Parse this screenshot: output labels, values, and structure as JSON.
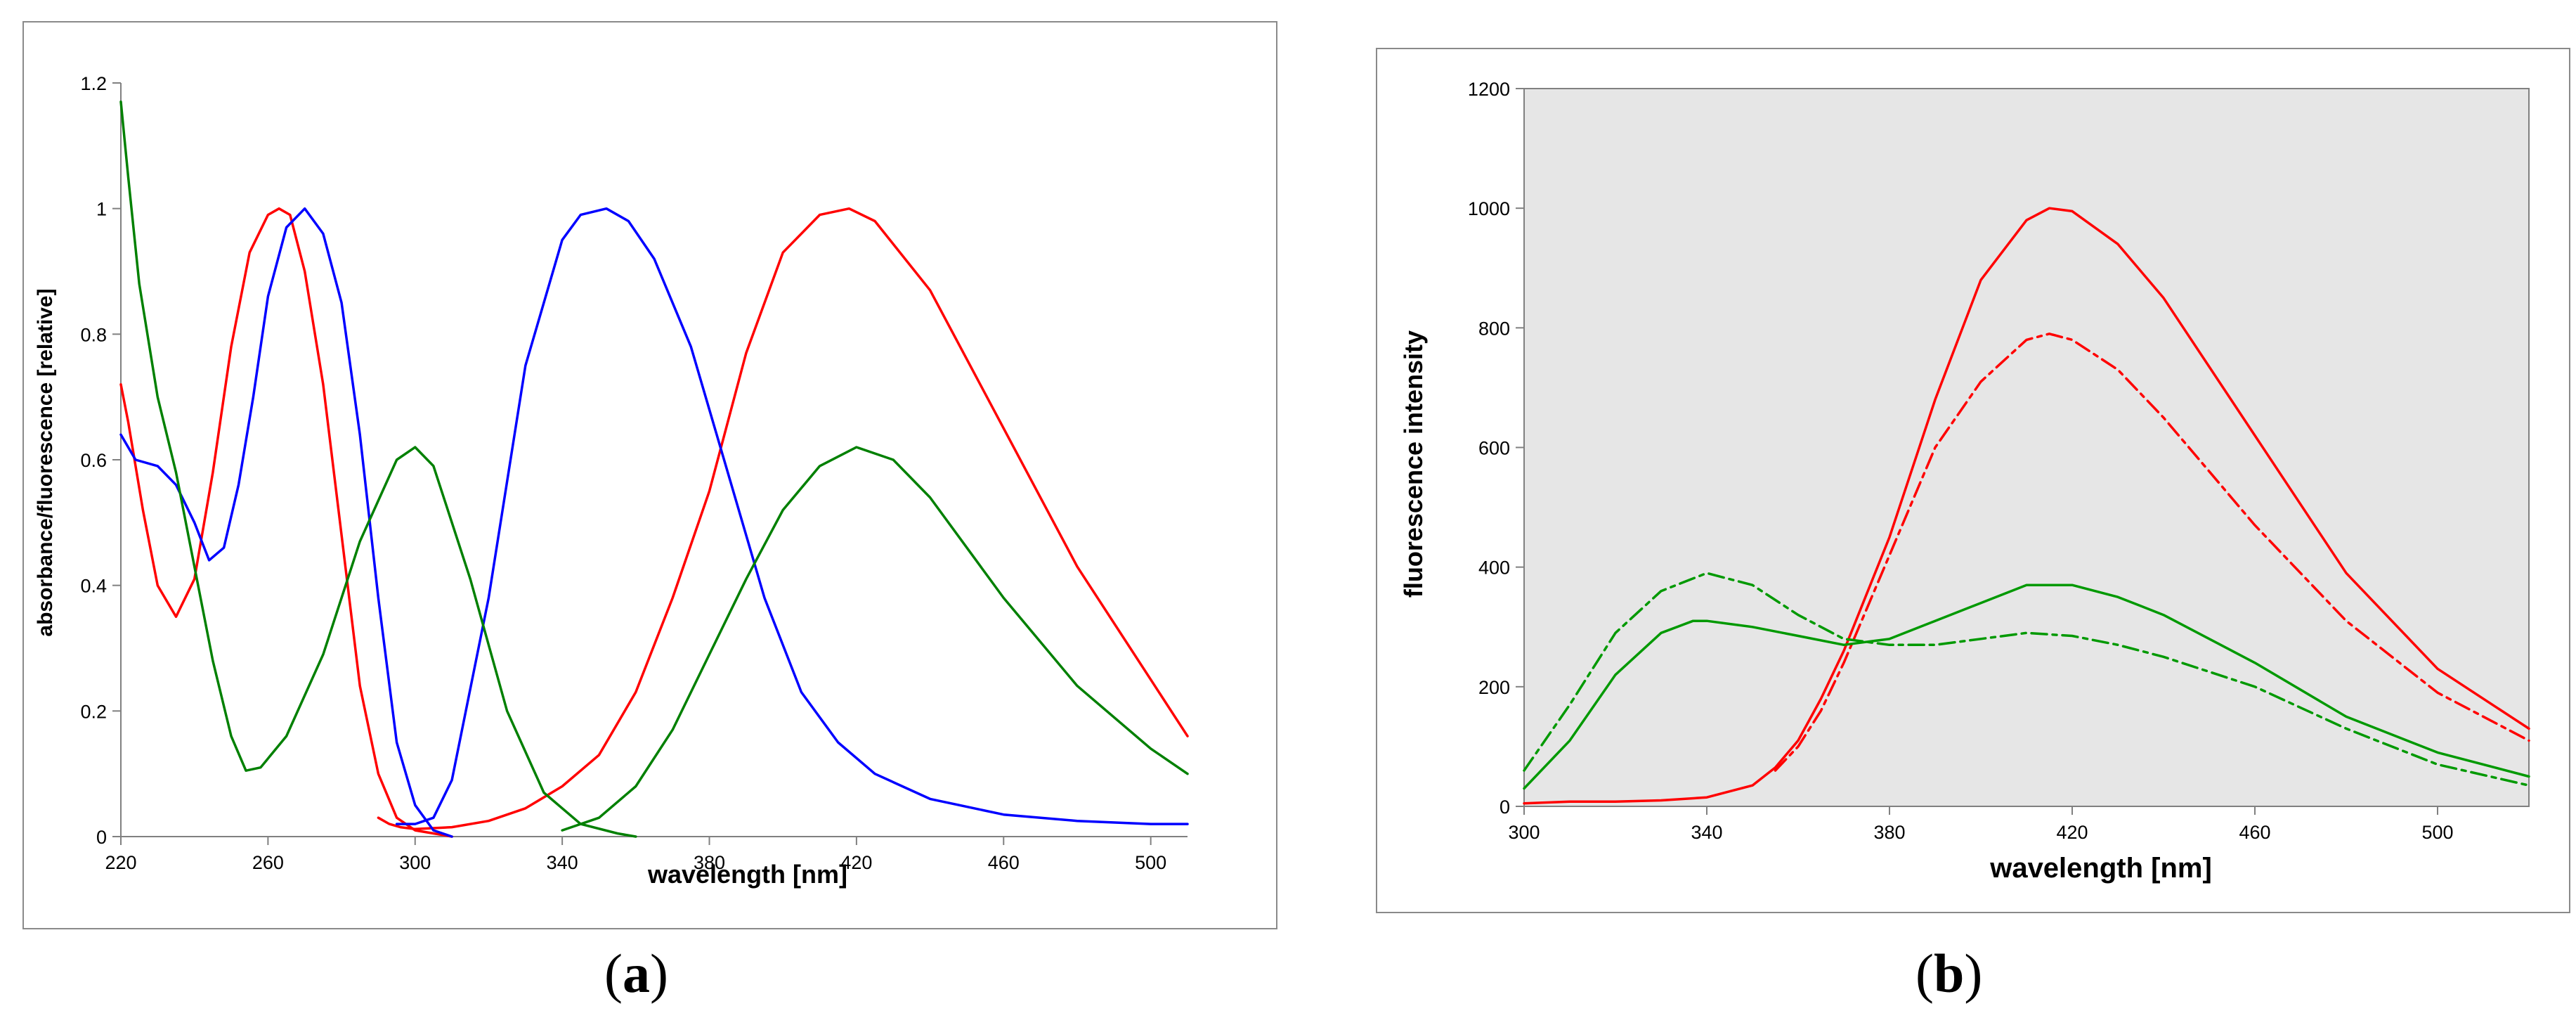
{
  "panel_labels": {
    "a": "a",
    "b": "b"
  },
  "chart_data": [
    {
      "id": "a",
      "type": "line",
      "xlabel": "wavelength [nm]",
      "ylabel": "absorbance/fluorescence [relative]",
      "xlim": [
        220,
        510
      ],
      "ylim": [
        0,
        1.2
      ],
      "xticks": [
        220,
        260,
        300,
        340,
        380,
        420,
        460,
        500
      ],
      "yticks": [
        0,
        0.2,
        0.4,
        0.6,
        0.8,
        1,
        1.2
      ],
      "ytick_labels": [
        "0",
        "0.2",
        "0.4",
        "0.6",
        "0.8",
        "1",
        "1.2"
      ],
      "grid": false,
      "background": "#ffffff",
      "series": [
        {
          "name": "red absorbance",
          "color": "#ff0000",
          "style": "solid",
          "x": [
            220,
            222,
            226,
            230,
            235,
            240,
            245,
            250,
            255,
            260,
            263,
            266,
            270,
            275,
            280,
            285,
            290,
            295,
            300,
            305,
            310
          ],
          "y": [
            0.72,
            0.66,
            0.52,
            0.4,
            0.35,
            0.41,
            0.58,
            0.78,
            0.93,
            0.99,
            1.0,
            0.99,
            0.9,
            0.72,
            0.48,
            0.24,
            0.1,
            0.03,
            0.01,
            0.005,
            0.0
          ]
        },
        {
          "name": "red fluorescence",
          "color": "#ff0000",
          "style": "solid",
          "x": [
            290,
            293,
            296,
            300,
            310,
            320,
            330,
            340,
            350,
            360,
            370,
            380,
            390,
            400,
            410,
            418,
            425,
            440,
            460,
            480,
            500,
            510
          ],
          "y": [
            0.03,
            0.02,
            0.015,
            0.012,
            0.015,
            0.025,
            0.045,
            0.08,
            0.13,
            0.23,
            0.38,
            0.55,
            0.77,
            0.93,
            0.99,
            1.0,
            0.98,
            0.87,
            0.65,
            0.43,
            0.25,
            0.16
          ]
        },
        {
          "name": "blue absorbance",
          "color": "#0000ff",
          "style": "solid",
          "x": [
            220,
            224,
            230,
            235,
            240,
            244,
            248,
            252,
            256,
            260,
            265,
            270,
            275,
            280,
            285,
            290,
            295,
            300,
            305,
            310
          ],
          "y": [
            0.64,
            0.6,
            0.59,
            0.56,
            0.5,
            0.44,
            0.46,
            0.56,
            0.7,
            0.86,
            0.97,
            1.0,
            0.96,
            0.85,
            0.64,
            0.38,
            0.15,
            0.05,
            0.01,
            0.0
          ]
        },
        {
          "name": "blue fluorescence",
          "color": "#0000ff",
          "style": "solid",
          "x": [
            295,
            300,
            305,
            310,
            320,
            330,
            340,
            345,
            352,
            358,
            365,
            375,
            385,
            395,
            405,
            415,
            425,
            440,
            460,
            480,
            500,
            510
          ],
          "y": [
            0.02,
            0.02,
            0.03,
            0.09,
            0.38,
            0.75,
            0.95,
            0.99,
            1.0,
            0.98,
            0.92,
            0.78,
            0.58,
            0.38,
            0.23,
            0.15,
            0.1,
            0.06,
            0.035,
            0.025,
            0.02,
            0.02
          ]
        },
        {
          "name": "green absorbance",
          "color": "#008000",
          "style": "solid",
          "x": [
            220,
            222,
            225,
            230,
            235,
            240,
            245,
            250,
            254,
            258,
            265,
            275,
            285,
            295,
            300,
            305,
            315,
            325,
            335,
            345,
            355,
            360
          ],
          "y": [
            1.17,
            1.05,
            0.88,
            0.7,
            0.58,
            0.43,
            0.28,
            0.16,
            0.105,
            0.11,
            0.16,
            0.29,
            0.47,
            0.6,
            0.62,
            0.59,
            0.41,
            0.2,
            0.07,
            0.02,
            0.005,
            0.0
          ]
        },
        {
          "name": "green fluorescence",
          "color": "#008000",
          "style": "solid",
          "x": [
            340,
            350,
            360,
            370,
            380,
            390,
            400,
            410,
            420,
            430,
            440,
            460,
            480,
            500,
            510
          ],
          "y": [
            0.01,
            0.03,
            0.08,
            0.17,
            0.29,
            0.41,
            0.52,
            0.59,
            0.62,
            0.6,
            0.54,
            0.38,
            0.24,
            0.14,
            0.1
          ]
        }
      ]
    },
    {
      "id": "b",
      "type": "line",
      "xlabel": "wavelength [nm]",
      "ylabel": "fluorescence intensity",
      "xlim": [
        300,
        520
      ],
      "ylim": [
        0,
        1200
      ],
      "xticks": [
        300,
        340,
        380,
        420,
        460,
        500
      ],
      "yticks": [
        0,
        200,
        400,
        600,
        800,
        1000,
        1200
      ],
      "ytick_labels": [
        "0",
        "200",
        "400",
        "600",
        "800",
        "1000",
        "1200"
      ],
      "grid": false,
      "background": "#e6e6e6",
      "series": [
        {
          "name": "red solid",
          "color": "#ff0000",
          "style": "solid",
          "x": [
            300,
            310,
            320,
            330,
            340,
            350,
            355,
            360,
            365,
            370,
            380,
            390,
            400,
            410,
            415,
            420,
            430,
            440,
            460,
            480,
            500,
            520
          ],
          "y": [
            5,
            8,
            8,
            10,
            15,
            35,
            65,
            110,
            180,
            260,
            450,
            680,
            880,
            980,
            1000,
            995,
            940,
            850,
            620,
            390,
            230,
            130
          ]
        },
        {
          "name": "red dashed",
          "color": "#ff0000",
          "style": "dashdot",
          "x": [
            355,
            360,
            365,
            370,
            380,
            390,
            400,
            410,
            415,
            420,
            430,
            440,
            460,
            480,
            500,
            520
          ],
          "y": [
            60,
            100,
            160,
            240,
            420,
            600,
            710,
            780,
            790,
            780,
            730,
            650,
            470,
            310,
            190,
            110
          ]
        },
        {
          "name": "green solid",
          "color": "#009900",
          "style": "solid",
          "x": [
            300,
            310,
            320,
            330,
            337,
            340,
            350,
            360,
            370,
            380,
            390,
            400,
            410,
            420,
            430,
            440,
            460,
            480,
            500,
            520
          ],
          "y": [
            30,
            110,
            220,
            290,
            310,
            310,
            300,
            285,
            270,
            280,
            310,
            340,
            370,
            370,
            350,
            320,
            240,
            150,
            90,
            50
          ]
        },
        {
          "name": "green dashed",
          "color": "#009900",
          "style": "dashdot",
          "x": [
            300,
            310,
            320,
            330,
            340,
            350,
            360,
            370,
            380,
            390,
            400,
            410,
            420,
            430,
            440,
            460,
            480,
            500,
            520
          ],
          "y": [
            60,
            170,
            290,
            360,
            390,
            370,
            320,
            280,
            270,
            270,
            280,
            290,
            285,
            270,
            250,
            200,
            130,
            70,
            35
          ]
        }
      ]
    }
  ]
}
